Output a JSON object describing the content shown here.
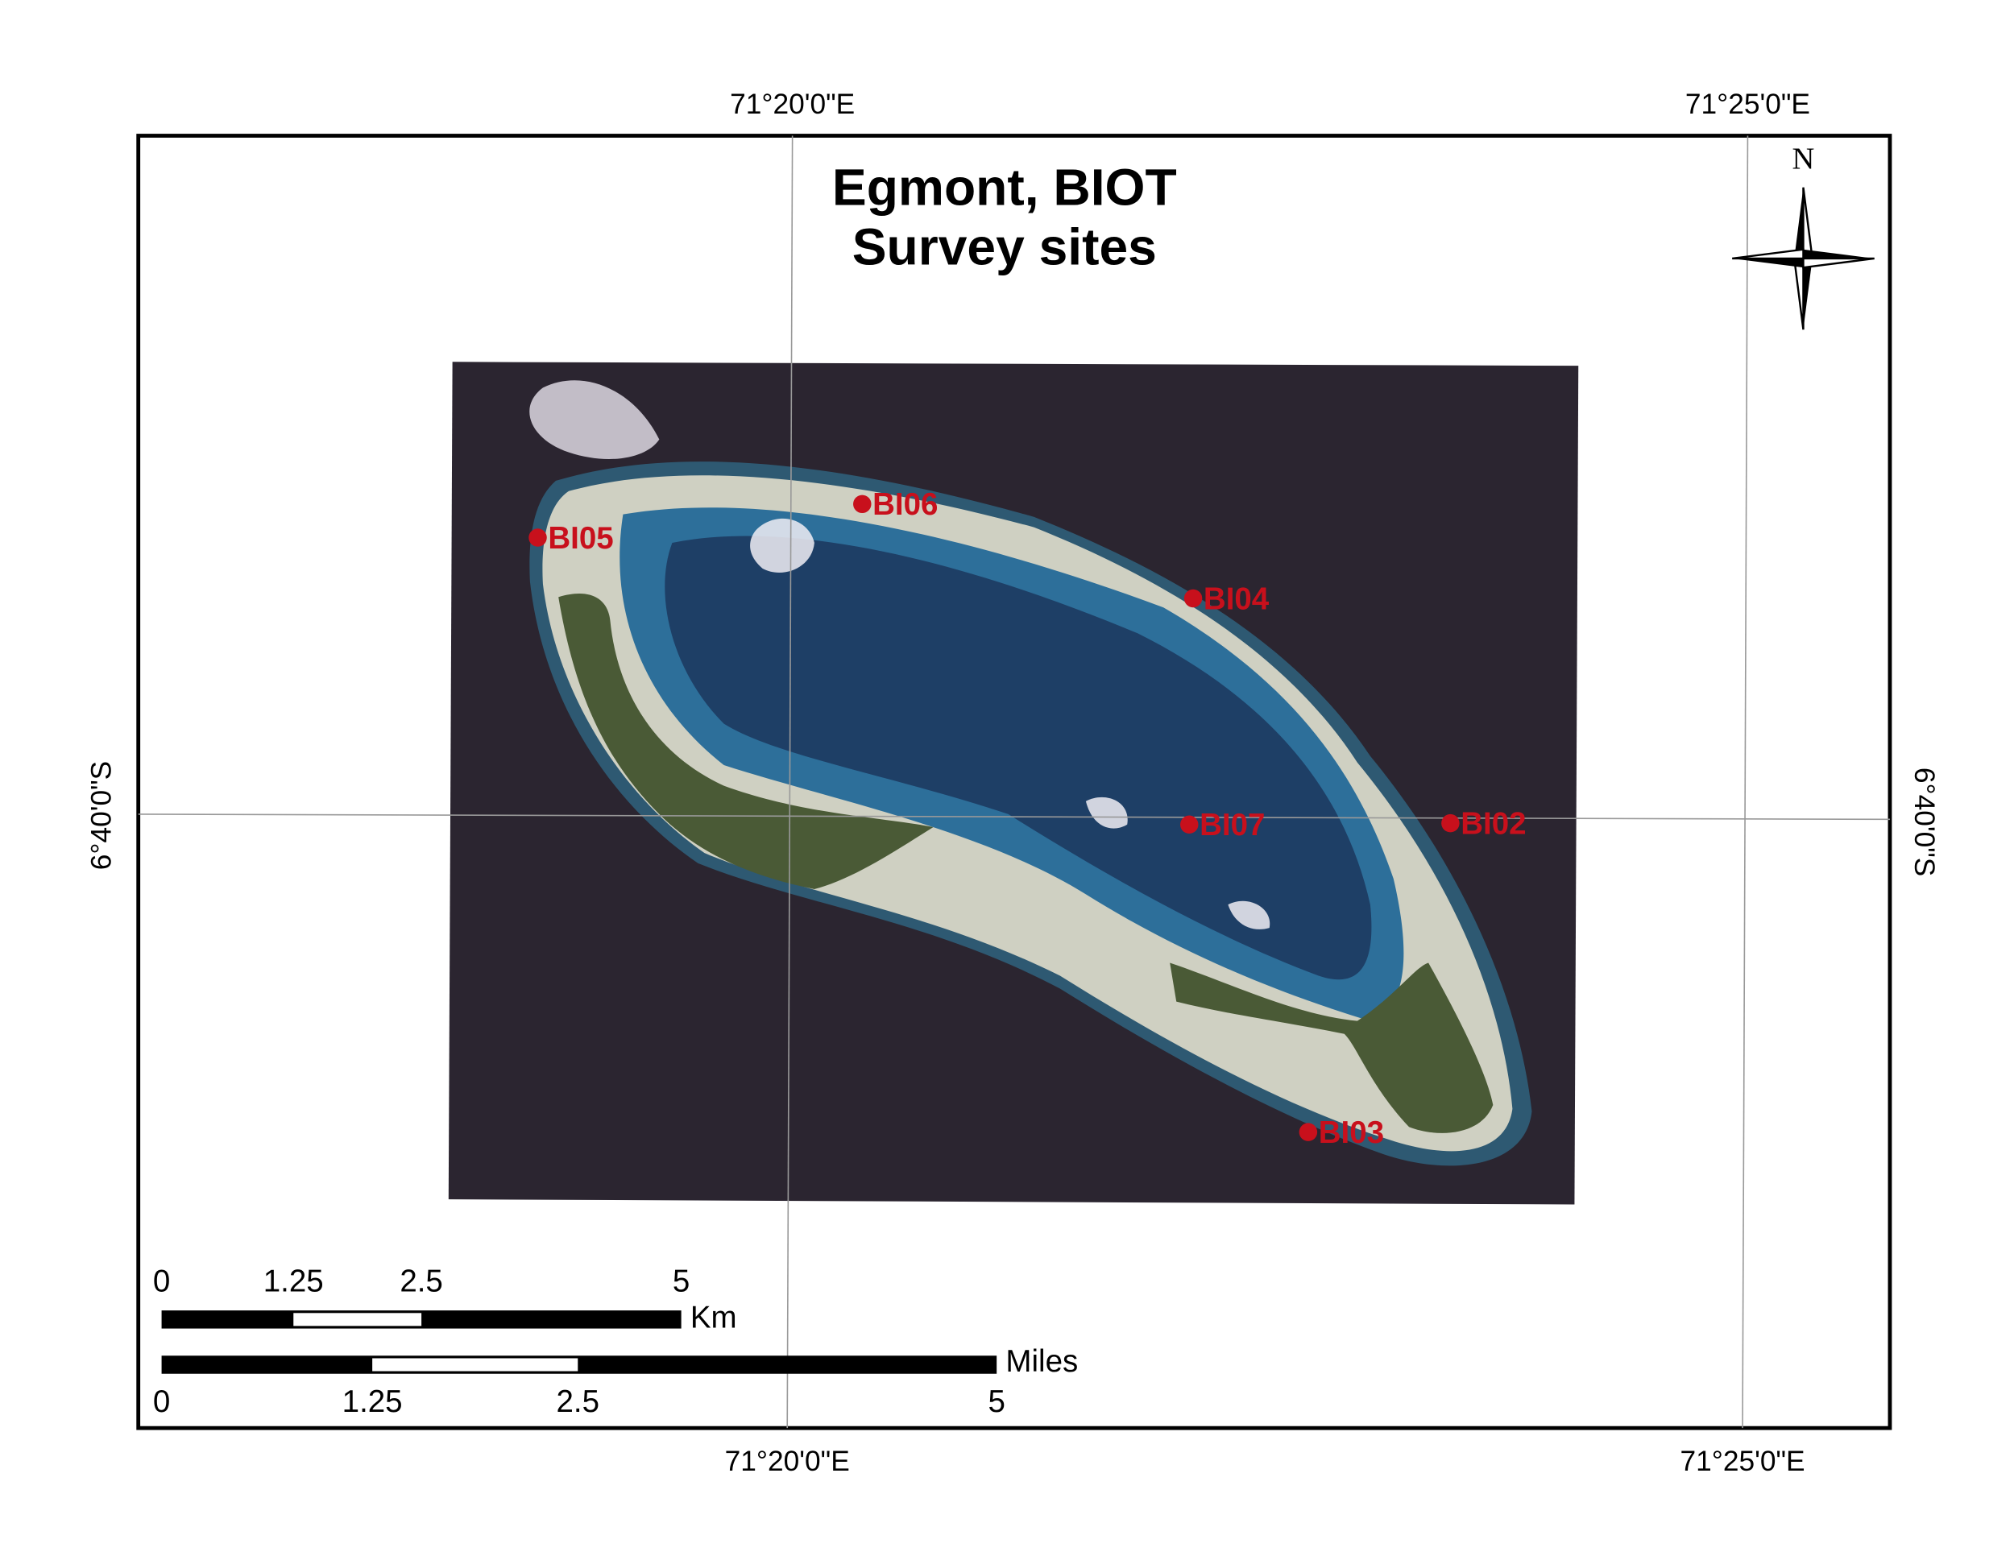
{
  "title": [
    "Egmont, BIOT",
    "Survey sites"
  ],
  "graticule": {
    "top": [
      "71°20'0\"E",
      "71°25'0\"E"
    ],
    "bottom": [
      "71°20'0\"E",
      "71°25'0\"E"
    ],
    "left": "6°40'0\"S",
    "right": "6°40'0\"S"
  },
  "north": "N",
  "sites": [
    "BI05",
    "BI06",
    "BI04",
    "BI07",
    "BI02",
    "BI03"
  ],
  "scale_km": {
    "labels": [
      "0",
      "1.25",
      "2.5",
      "5"
    ],
    "unit": "Km"
  },
  "scale_miles": {
    "labels": [
      "0",
      "1.25",
      "2.5",
      "5"
    ],
    "unit": "Miles"
  }
}
